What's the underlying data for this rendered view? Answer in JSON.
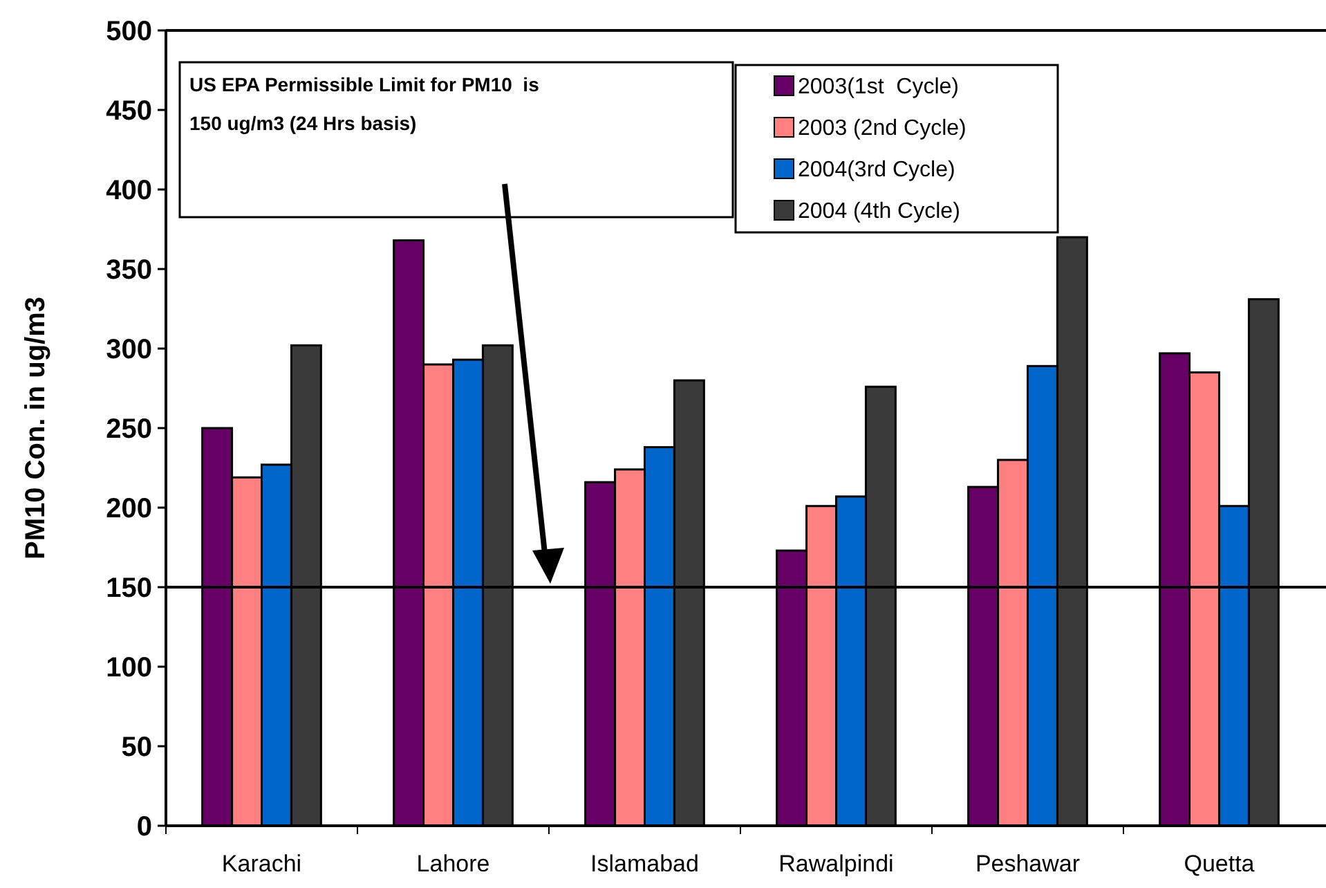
{
  "chart_data": {
    "type": "bar",
    "ylabel": "PM10 Con. in ug/m3",
    "categories": [
      "Karachi",
      "Lahore",
      "Islamabad",
      "Rawalpindi",
      "Peshawar",
      "Quetta"
    ],
    "series": [
      {
        "name": "2003(1st  Cycle)",
        "color": "#660066",
        "values": [
          250,
          368,
          216,
          173,
          213,
          297
        ]
      },
      {
        "name": "2003 (2nd Cycle)",
        "color": "#ff8080",
        "values": [
          219,
          290,
          224,
          201,
          230,
          285
        ]
      },
      {
        "name": "2004(3rd Cycle)",
        "color": "#0066cc",
        "values": [
          227,
          293,
          238,
          207,
          289,
          201
        ]
      },
      {
        "name": "2004 (4th Cycle)",
        "color": "#3a3a3a",
        "values": [
          302,
          302,
          280,
          276,
          370,
          331
        ]
      }
    ],
    "ylim": [
      0,
      500
    ],
    "yticks": [
      0,
      50,
      100,
      150,
      200,
      250,
      300,
      350,
      400,
      450,
      500
    ],
    "grid": false,
    "legend": "top right",
    "ref_lines": [
      {
        "axis": "y",
        "value": 150,
        "color": "#000000"
      }
    ],
    "annotations": [
      "US EPA Permissible Limit for PM10  is 150 ug/m3 (24 Hrs basis)"
    ]
  }
}
